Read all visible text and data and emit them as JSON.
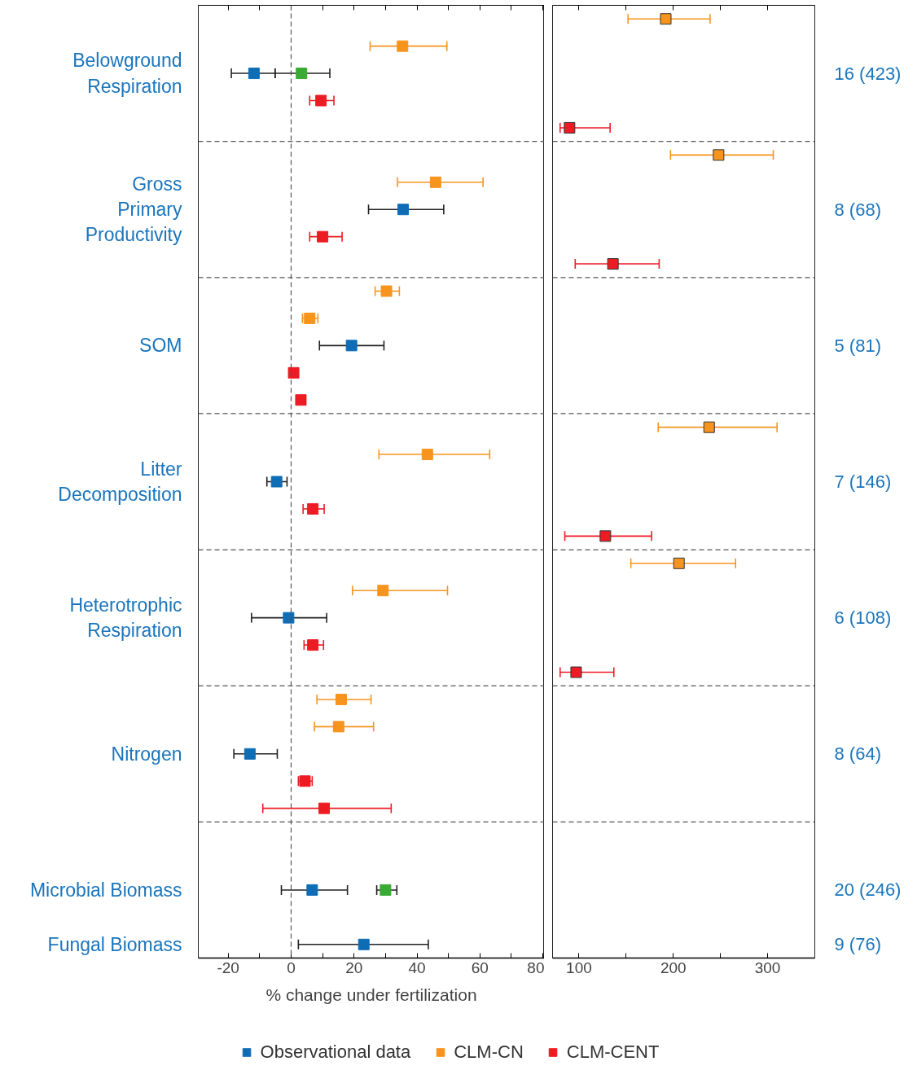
{
  "chart_data": [
    {
      "type": "scatter",
      "orientation": "horizontal",
      "xlabel": "% change under fertilization",
      "xlim": [
        -29.5,
        80.5
      ],
      "xticks": [
        -20,
        {
          "value": -10,
          "label": null
        },
        0,
        {
          "value": 10,
          "label": null
        },
        20,
        {
          "value": 30,
          "label": null
        },
        40,
        {
          "value": 50,
          "label": null
        },
        60,
        {
          "value": 70,
          "label": null
        },
        80
      ],
      "categories": [
        null,
        null,
        "Belowground\nRespiration",
        null,
        null,
        null,
        null,
        "Gross\nPrimary\nProductivity",
        null,
        null,
        null,
        null,
        "SOM",
        null,
        null,
        null,
        null,
        "Litter\nDecomposition",
        null,
        null,
        null,
        null,
        "Heterotrophic\nRespiration",
        null,
        null,
        null,
        null,
        "Nitrogen",
        null,
        null,
        null,
        null,
        "Microbial Biomass",
        null,
        "Fungal Biomass"
      ],
      "marker": "square",
      "grid": false,
      "legend": "bottom",
      "ref_lines": [
        {
          "axis": "x",
          "value": 0,
          "line_style": "dashed"
        }
      ],
      "series": [
        {
          "name": "Observational data",
          "color": "#0f6db6",
          "values": [
            null,
            null,
            -11.8,
            null,
            null,
            null,
            null,
            35.6,
            null,
            null,
            null,
            null,
            19.2,
            null,
            null,
            null,
            null,
            -4.6,
            null,
            null,
            null,
            null,
            -0.8,
            null,
            null,
            null,
            null,
            -13.1,
            null,
            null,
            null,
            null,
            6.7,
            null,
            23.1
          ],
          "errors": [
            null,
            null,
            [
              -19,
              -5.1
            ],
            null,
            null,
            null,
            null,
            [
              24.6,
              48.5
            ],
            null,
            null,
            null,
            null,
            [
              9,
              29.5
            ],
            null,
            null,
            null,
            null,
            [
              -7.7,
              -1.3
            ],
            null,
            null,
            null,
            null,
            [
              -12.6,
              11.3
            ],
            null,
            null,
            null,
            null,
            [
              -18.2,
              -4.4
            ],
            null,
            null,
            null,
            null,
            [
              -3.1,
              17.9
            ],
            null,
            [
              2.3,
              43.6
            ]
          ]
        },
        {
          "color": "#3aaa35",
          "values": [
            null,
            null,
            3.3,
            null,
            null,
            null,
            null,
            null,
            null,
            null,
            null,
            null,
            null,
            null,
            null,
            null,
            null,
            null,
            null,
            null,
            null,
            null,
            null,
            null,
            null,
            null,
            null,
            null,
            null,
            null,
            null,
            null,
            30,
            null,
            null
          ],
          "errors": [
            null,
            null,
            [
              -5.1,
              12.3
            ],
            null,
            null,
            null,
            null,
            null,
            null,
            null,
            null,
            null,
            null,
            null,
            null,
            null,
            null,
            null,
            null,
            null,
            null,
            null,
            null,
            null,
            null,
            null,
            null,
            null,
            null,
            null,
            null,
            null,
            [
              27.2,
              33.6
            ],
            null,
            null
          ]
        },
        {
          "name": "CLM-CN",
          "color": "#f7941d",
          "values": [
            null,
            35.4,
            null,
            null,
            null,
            null,
            45.9,
            null,
            null,
            null,
            30.3,
            5.9,
            null,
            null,
            null,
            null,
            43.3,
            null,
            null,
            null,
            null,
            29.2,
            null,
            null,
            null,
            15.9,
            15.1,
            null,
            null,
            null,
            null,
            null,
            null,
            null,
            null
          ],
          "errors": [
            null,
            [
              25.1,
              49.5
            ],
            null,
            null,
            null,
            null,
            [
              33.8,
              61
            ],
            null,
            null,
            null,
            [
              26.7,
              34.4
            ],
            [
              3.6,
              8.5
            ],
            null,
            null,
            null,
            null,
            [
              27.9,
              63.1
            ],
            null,
            null,
            null,
            null,
            [
              19.5,
              49.7
            ],
            null,
            null,
            null,
            [
              8.2,
              25.4
            ],
            [
              7.4,
              26.2
            ],
            null,
            null,
            null,
            null,
            null,
            null,
            null,
            null
          ]
        },
        {
          "name": "CLM-CENT",
          "color": "#ed1c24",
          "values": [
            null,
            null,
            null,
            9.5,
            null,
            null,
            null,
            null,
            10,
            null,
            null,
            null,
            null,
            0.8,
            3.1,
            null,
            null,
            null,
            6.9,
            null,
            null,
            null,
            null,
            6.9,
            null,
            null,
            null,
            null,
            4.4,
            10.5,
            null,
            null,
            null,
            null,
            null
          ],
          "errors": [
            null,
            null,
            null,
            [
              5.9,
              13.6
            ],
            null,
            null,
            null,
            null,
            [
              5.9,
              16.2
            ],
            null,
            null,
            null,
            null,
            [
              0,
              1.8
            ],
            [
              2,
              4.4
            ],
            null,
            null,
            null,
            [
              3.8,
              10.5
            ],
            null,
            null,
            null,
            null,
            [
              4.1,
              10.3
            ],
            null,
            null,
            null,
            null,
            [
              2.3,
              6.7
            ],
            [
              -9,
              31.8
            ],
            null,
            null,
            null,
            null,
            null
          ]
        }
      ]
    },
    {
      "type": "scatter",
      "orientation": "horizontal",
      "xlim": [
        72,
        350
      ],
      "xticks": [
        100,
        {
          "value": 150,
          "label": null
        },
        200,
        {
          "value": 250,
          "label": null
        },
        300
      ],
      "categories": [
        null,
        null,
        null,
        null,
        null,
        null,
        null,
        null,
        null,
        null,
        null,
        null,
        null,
        null,
        null,
        null,
        null,
        null,
        null,
        null,
        null,
        null,
        null,
        null,
        null,
        null,
        null,
        null,
        null,
        null,
        null,
        null,
        null,
        null,
        null
      ],
      "y2_categories": [
        null,
        null,
        "16 (423)",
        null,
        null,
        null,
        null,
        "8 (68)",
        null,
        null,
        null,
        null,
        "5 (81)",
        null,
        null,
        null,
        null,
        "7 (146)",
        null,
        null,
        null,
        null,
        "6 (108)",
        null,
        null,
        null,
        null,
        "8 (64)",
        null,
        null,
        null,
        null,
        "20 (246)",
        null,
        "9 (76)"
      ],
      "marker": "square",
      "grid": false,
      "series": [
        {
          "color": "#f7941d",
          "values": [
            192,
            null,
            null,
            null,
            null,
            248,
            null,
            null,
            null,
            null,
            null,
            null,
            null,
            null,
            null,
            238,
            null,
            null,
            null,
            null,
            206,
            null,
            null,
            null,
            null,
            null,
            null,
            null,
            null,
            null,
            null,
            null,
            null,
            null,
            null
          ],
          "errors": [
            [
              152,
              239
            ],
            null,
            null,
            null,
            null,
            [
              197,
              306
            ],
            null,
            null,
            null,
            null,
            null,
            null,
            null,
            null,
            null,
            [
              184,
              310
            ],
            null,
            null,
            null,
            null,
            [
              155,
              266
            ],
            null,
            null,
            null,
            null,
            null,
            null,
            null,
            null,
            null,
            null,
            null,
            null,
            null,
            null
          ]
        },
        {
          "color": "#ed1c24",
          "values": [
            null,
            null,
            null,
            null,
            90,
            null,
            null,
            null,
            null,
            136,
            null,
            null,
            null,
            null,
            null,
            null,
            null,
            null,
            null,
            128,
            null,
            null,
            null,
            null,
            97,
            null,
            null,
            null,
            null,
            null,
            null,
            null,
            null,
            null,
            null
          ],
          "errors": [
            null,
            null,
            null,
            null,
            [
              80,
              133
            ],
            null,
            null,
            null,
            null,
            [
              96,
              185
            ],
            null,
            null,
            null,
            null,
            null,
            null,
            null,
            null,
            null,
            [
              85,
              177
            ],
            null,
            null,
            null,
            null,
            [
              80,
              137
            ],
            null,
            null,
            null,
            null,
            null,
            null,
            null,
            null,
            null,
            null
          ]
        }
      ]
    }
  ]
}
